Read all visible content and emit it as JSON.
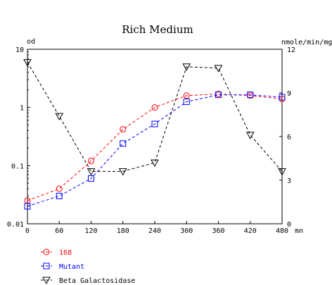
{
  "chart_data": {
    "type": "line",
    "title": "Rich Medium",
    "xlabel": "mn",
    "ylabel_left": "od",
    "ylabel_right": "nmole/min/mg",
    "x": [
      0,
      60,
      120,
      180,
      240,
      300,
      360,
      420,
      480
    ],
    "x_ticks": [
      "0",
      "60",
      "120",
      "180",
      "240",
      "300",
      "360",
      "420",
      "480"
    ],
    "xlim": [
      0,
      480
    ],
    "y_left": {
      "scale": "log",
      "range": [
        0.01,
        10
      ],
      "ticks": [
        "0.01",
        "0.1",
        "1",
        "10"
      ]
    },
    "y_right": {
      "scale": "linear",
      "range": [
        0,
        12
      ],
      "ticks": [
        "0",
        "3",
        "6",
        "9",
        "12"
      ]
    },
    "grid": false,
    "legend_position": "bottom-left",
    "series": [
      {
        "name": "168",
        "axis": "left",
        "marker": "circle",
        "color": "#ff0000",
        "values": [
          0.025,
          0.04,
          0.12,
          0.42,
          1.0,
          1.6,
          1.7,
          1.6,
          1.4
        ]
      },
      {
        "name": "Mutant",
        "axis": "left",
        "marker": "square",
        "color": "#0000ff",
        "values": [
          0.02,
          0.03,
          0.06,
          0.24,
          0.52,
          1.25,
          1.65,
          1.65,
          1.5
        ]
      },
      {
        "name": "Beta Galactosidase",
        "axis": "right",
        "marker": "triangle-down",
        "color": "#000000",
        "values": [
          11.1,
          7.4,
          3.6,
          3.6,
          4.2,
          10.8,
          10.7,
          6.1,
          3.6
        ]
      }
    ]
  }
}
